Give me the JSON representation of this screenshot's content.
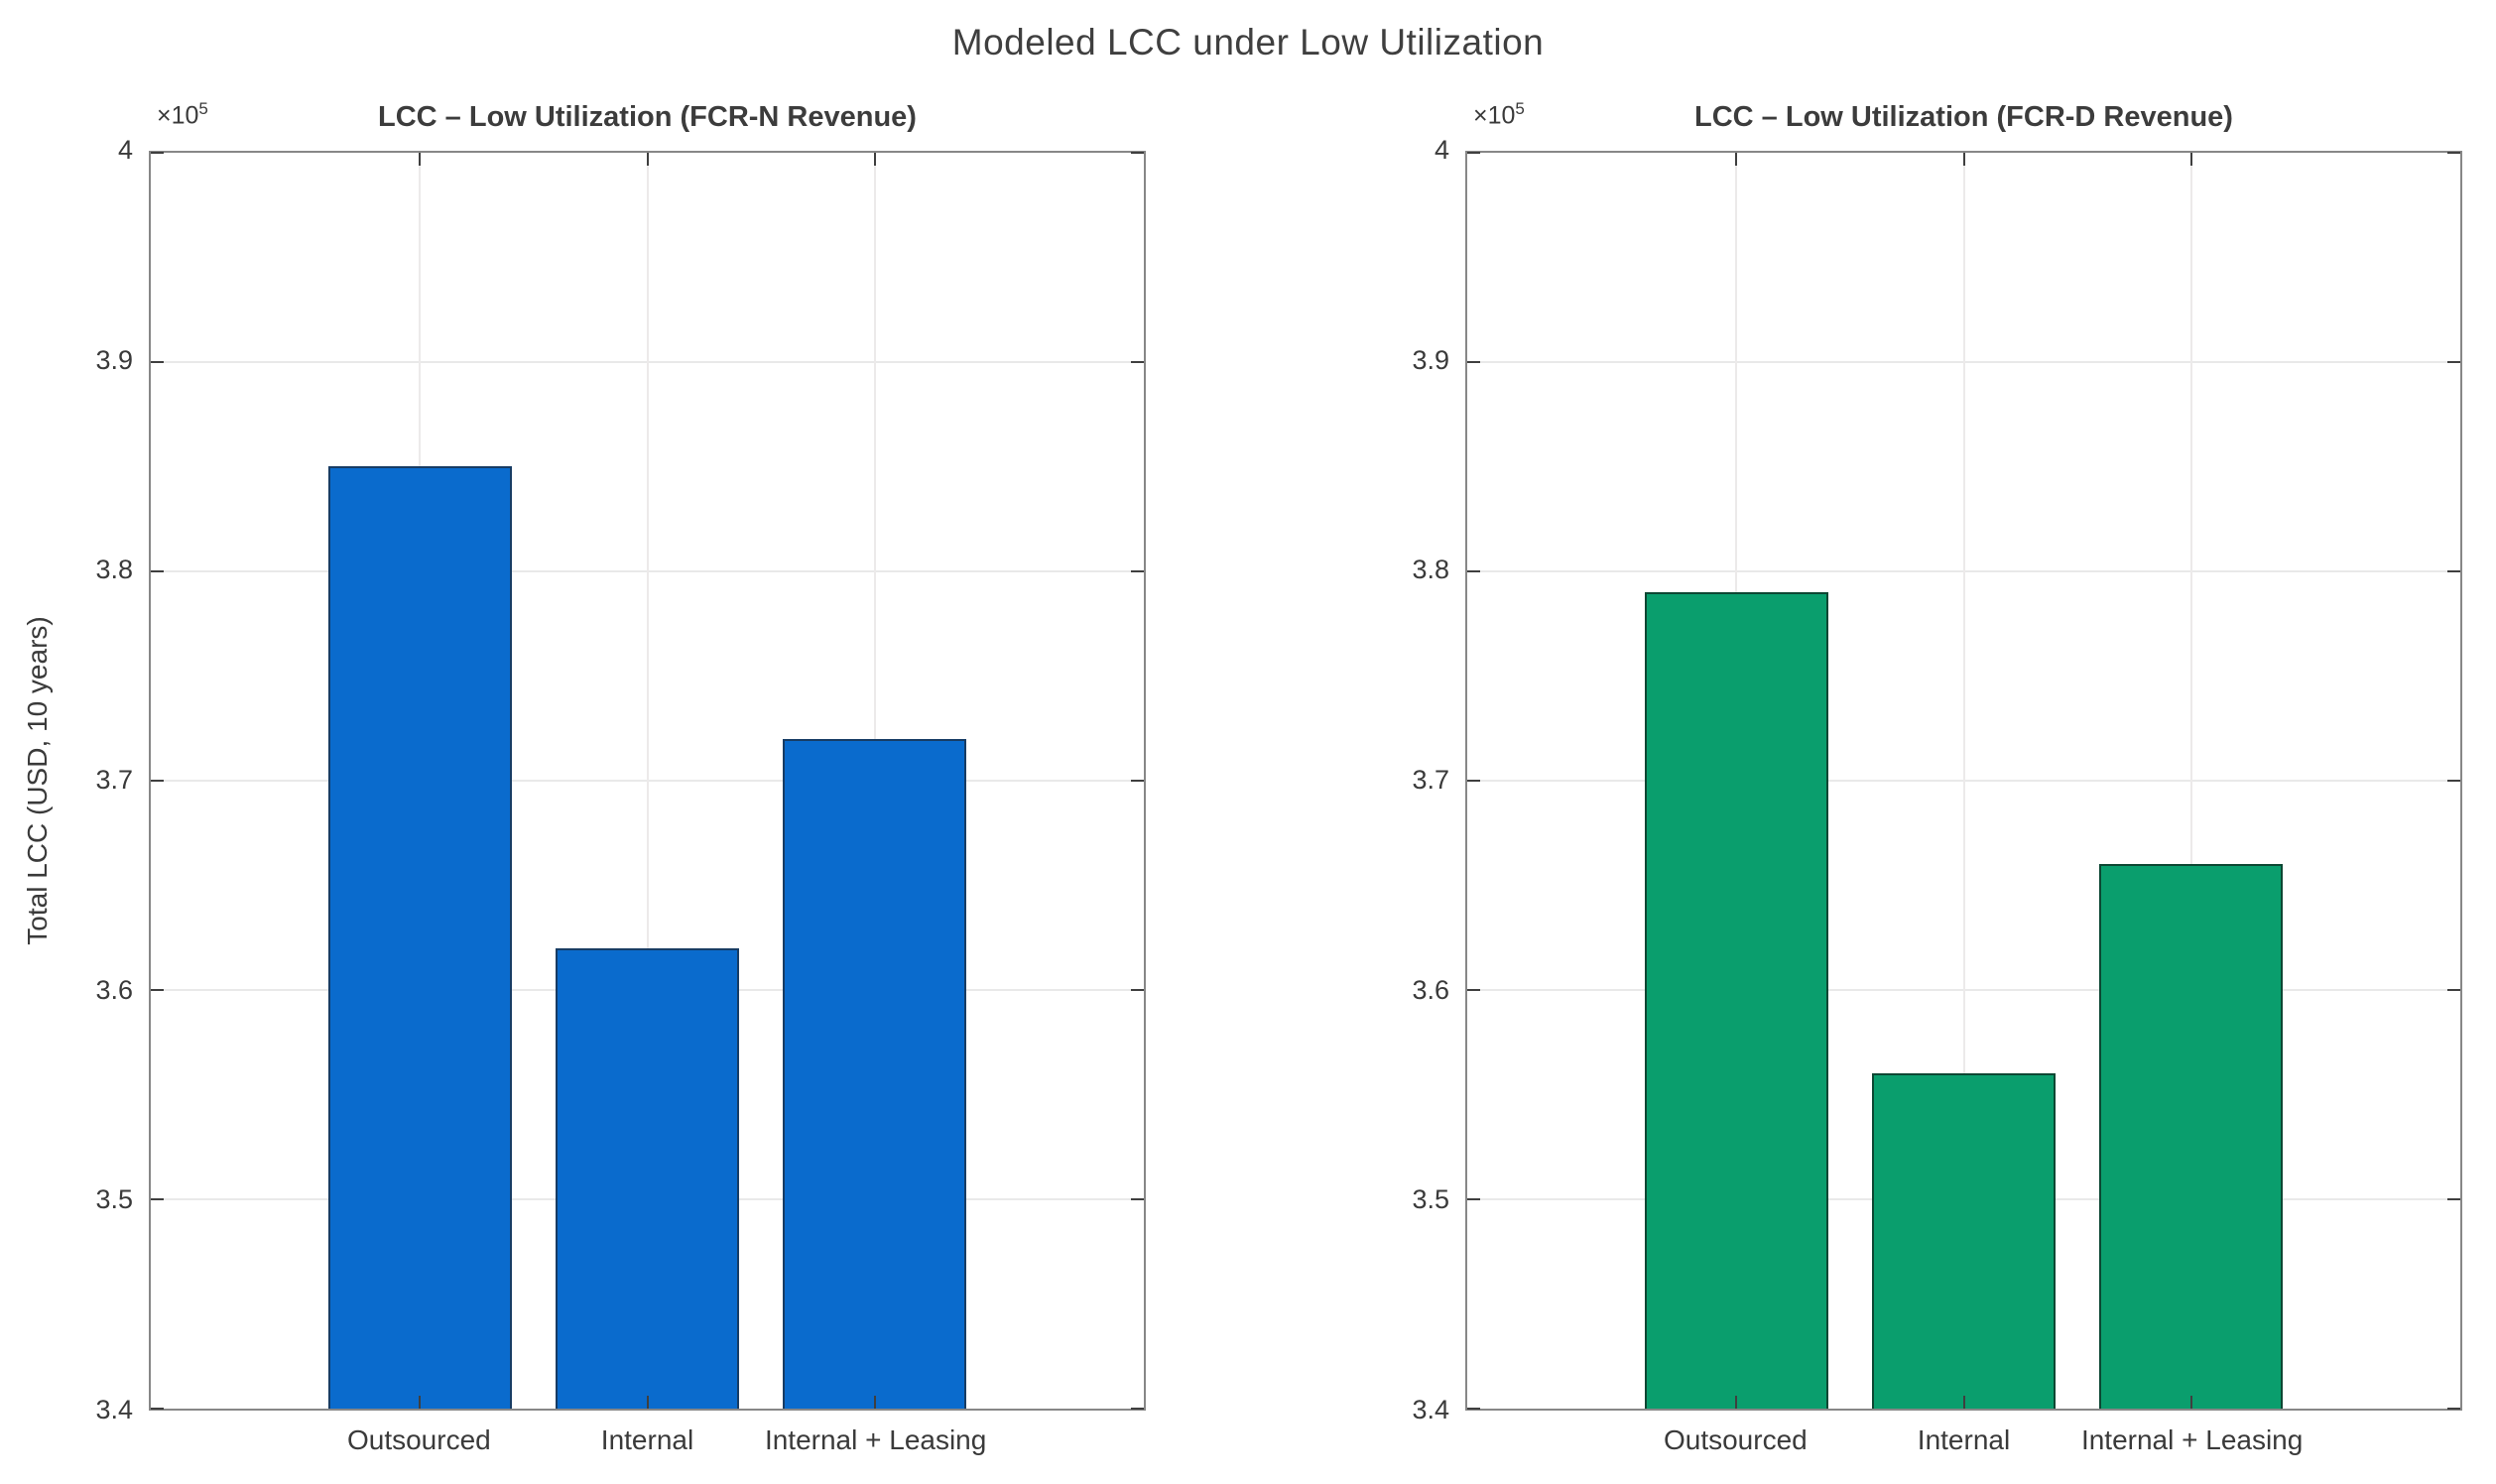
{
  "figure": {
    "title": "Modeled LCC under Low Utilization"
  },
  "chart_data": [
    {
      "type": "bar",
      "title": "LCC – Low Utilization (FCR-N Revenue)",
      "y_multiplier_label": "×10⁵",
      "unit_multiplier": 100000,
      "ylabel": "Total LCC (USD, 10 years)",
      "categories": [
        "Outsourced",
        "Internal",
        "Internal + Leasing"
      ],
      "values": [
        3.85,
        3.62,
        3.72
      ],
      "ylim": [
        3.4,
        4.0
      ],
      "yticks": [
        "4",
        "3.9",
        "3.8",
        "3.7",
        "3.6",
        "3.5",
        "3.4"
      ],
      "grid": true,
      "bar_color": "#0a6bcd",
      "bar_edge_color": "#173c64"
    },
    {
      "type": "bar",
      "title": "LCC – Low Utilization (FCR-D Revenue)",
      "y_multiplier_label": "×10⁵",
      "unit_multiplier": 100000,
      "ylabel": "",
      "categories": [
        "Outsourced",
        "Internal",
        "Internal + Leasing"
      ],
      "values": [
        3.79,
        3.56,
        3.66
      ],
      "ylim": [
        3.4,
        4.0
      ],
      "yticks": [
        "4",
        "3.9",
        "3.8",
        "3.7",
        "3.6",
        "3.5",
        "3.4"
      ],
      "grid": true,
      "bar_color": "#0a9e6d",
      "bar_edge_color": "#0d4733"
    }
  ]
}
